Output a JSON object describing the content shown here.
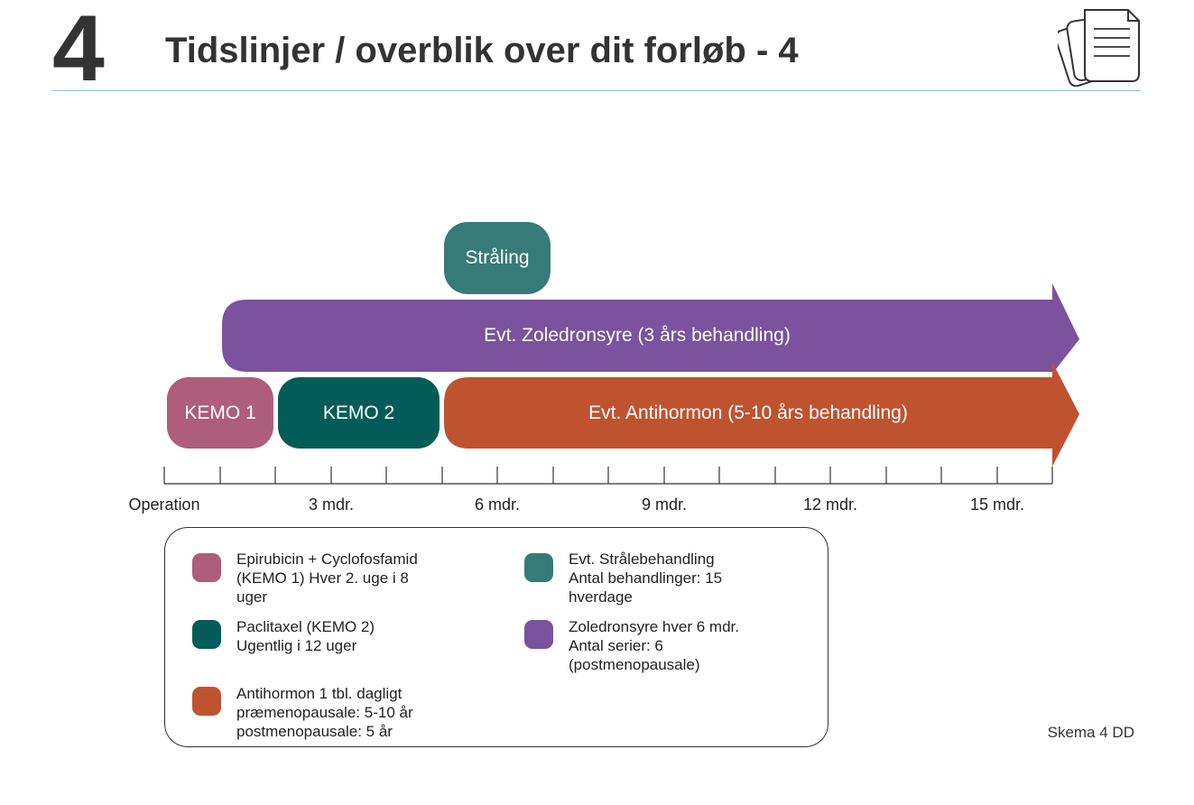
{
  "header": {
    "number": "4",
    "title": "Tidslinjer / overblik over dit forløb - 4",
    "icon": "document-stack-icon"
  },
  "colors": {
    "kemo1": "#ae5d7a",
    "kemo2": "#035c57",
    "straaling": "#377b78",
    "zoledronsyre": "#7a529e",
    "antihormon": "#bf5330",
    "header_rule": "#8ec3cf"
  },
  "timeline": {
    "bars": {
      "straaling": "Stråling",
      "zoledronsyre": "Evt. Zoledronsyre (3 års behandling)",
      "kemo1": "KEMO 1",
      "kemo2": "KEMO 2",
      "antihormon": "Evt. Antihormon (5-10 års behandling)"
    },
    "axis_labels": [
      "Operation",
      "3 mdr.",
      "6 mdr.",
      "9 mdr.",
      "12 mdr.",
      "15 mdr."
    ]
  },
  "legend": {
    "kemo1": [
      "Epirubicin + Cyclofosfamid",
      "(KEMO 1) Hver 2. uge i 8",
      "uger"
    ],
    "kemo2": [
      "Paclitaxel (KEMO 2)",
      "Ugentlig i 12 uger"
    ],
    "antihormon": [
      "Antihormon 1 tbl. dagligt",
      "præmenopausale: 5-10 år",
      "postmenopausale: 5 år"
    ],
    "straaling": [
      "Evt. Strålebehandling",
      "Antal behandlinger: 15",
      "hverdage"
    ],
    "zoledronsyre": [
      "Zoledronsyre hver 6 mdr.",
      "Antal serier: 6",
      "(postmenopausale)"
    ]
  },
  "footer": {
    "reference": "Skema 4 DD"
  }
}
